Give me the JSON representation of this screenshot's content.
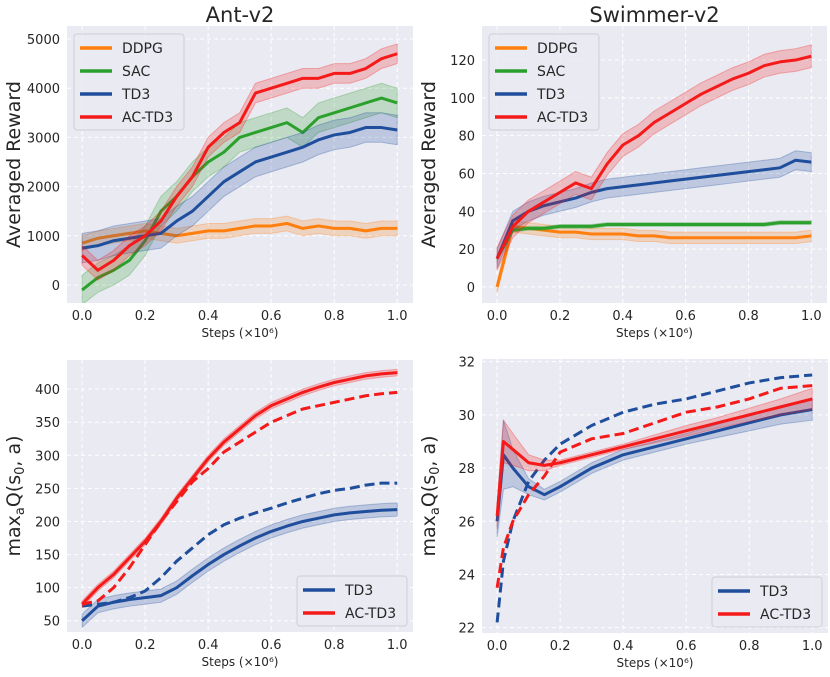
{
  "colors": {
    "DDPG": "#ff7f0e",
    "SAC": "#2ca02c",
    "TD3": "#1f4e9c",
    "AC-TD3": "#f51a1a",
    "background": "#eaeaf2",
    "grid": "#ffffff"
  },
  "chart_data": [
    {
      "type": "line",
      "title": "Ant-v2",
      "xlabel": "Steps (×10⁶)",
      "ylabel": "Averaged Reward",
      "xlim": [
        -0.048,
        1.05
      ],
      "ylim": [
        -366,
        5264
      ],
      "xticks": [
        0.0,
        0.2,
        0.4,
        0.6,
        0.8,
        1.0
      ],
      "xtick_labels": [
        "0.0",
        "0.2",
        "0.4",
        "0.6",
        "0.8",
        "1.0"
      ],
      "yticks": [
        0,
        1000,
        2000,
        3000,
        4000,
        5000
      ],
      "ytick_labels": [
        "0",
        "1000",
        "2000",
        "3000",
        "4000",
        "5000"
      ],
      "grid": true,
      "legend": "top-left",
      "x": [
        0,
        0.05,
        0.1,
        0.15,
        0.2,
        0.25,
        0.3,
        0.35,
        0.4,
        0.45,
        0.5,
        0.55,
        0.6,
        0.65,
        0.7,
        0.75,
        0.8,
        0.85,
        0.9,
        0.95,
        1.0
      ],
      "series": [
        {
          "name": "DDPG",
          "style": "solid",
          "band": 150,
          "values": [
            850,
            950,
            1000,
            1050,
            1100,
            1050,
            1000,
            1050,
            1100,
            1100,
            1150,
            1200,
            1200,
            1250,
            1150,
            1200,
            1150,
            1150,
            1100,
            1150,
            1150
          ]
        },
        {
          "name": "SAC",
          "style": "solid",
          "band": 300,
          "values": [
            -100,
            150,
            300,
            500,
            900,
            1500,
            1800,
            2200,
            2500,
            2700,
            3000,
            3100,
            3200,
            3300,
            3100,
            3400,
            3500,
            3600,
            3700,
            3800,
            3700
          ]
        },
        {
          "name": "TD3",
          "style": "solid",
          "band": 300,
          "values": [
            750,
            800,
            900,
            950,
            1000,
            1050,
            1300,
            1500,
            1800,
            2100,
            2300,
            2500,
            2600,
            2700,
            2800,
            2950,
            3050,
            3100,
            3200,
            3200,
            3150
          ]
        },
        {
          "name": "AC-TD3",
          "style": "solid",
          "band": 200,
          "values": [
            600,
            300,
            500,
            800,
            1000,
            1300,
            1800,
            2200,
            2800,
            3100,
            3300,
            3900,
            4000,
            4100,
            4200,
            4200,
            4300,
            4300,
            4400,
            4600,
            4700
          ]
        }
      ]
    },
    {
      "type": "line",
      "title": "Swimmer-v2",
      "xlabel": "Steps (×10⁶)",
      "ylabel": "Averaged Reward",
      "xlim": [
        -0.048,
        1.05
      ],
      "ylim": [
        -8.5,
        138
      ],
      "xticks": [
        0.0,
        0.2,
        0.4,
        0.6,
        0.8,
        1.0
      ],
      "xtick_labels": [
        "0.0",
        "0.2",
        "0.4",
        "0.6",
        "0.8",
        "1.0"
      ],
      "yticks": [
        0,
        20,
        40,
        60,
        80,
        100,
        120
      ],
      "ytick_labels": [
        "0",
        "20",
        "40",
        "60",
        "80",
        "100",
        "120"
      ],
      "grid": true,
      "legend": "top-left",
      "x": [
        0,
        0.05,
        0.1,
        0.15,
        0.2,
        0.25,
        0.3,
        0.35,
        0.4,
        0.45,
        0.5,
        0.55,
        0.6,
        0.65,
        0.7,
        0.75,
        0.8,
        0.85,
        0.9,
        0.95,
        1.0
      ],
      "series": [
        {
          "name": "DDPG",
          "style": "solid",
          "band": 3,
          "values": [
            0,
            32,
            31,
            30,
            29,
            29,
            28,
            28,
            28,
            27,
            27,
            26,
            26,
            26,
            26,
            26,
            26,
            26,
            26,
            26,
            27
          ]
        },
        {
          "name": "SAC",
          "style": "solid",
          "band": 1,
          "values": [
            15,
            30,
            31,
            31,
            32,
            32,
            32,
            33,
            33,
            33,
            33,
            33,
            33,
            33,
            33,
            33,
            33,
            33,
            34,
            34,
            34
          ]
        },
        {
          "name": "TD3",
          "style": "solid",
          "band": 5,
          "values": [
            15,
            35,
            40,
            43,
            45,
            47,
            50,
            52,
            53,
            54,
            55,
            56,
            57,
            58,
            59,
            60,
            61,
            62,
            63,
            67,
            66
          ]
        },
        {
          "name": "AC-TD3",
          "style": "solid",
          "band": 6,
          "values": [
            15,
            32,
            40,
            45,
            50,
            55,
            52,
            65,
            75,
            80,
            87,
            92,
            97,
            102,
            106,
            110,
            113,
            117,
            119,
            120,
            122
          ]
        }
      ]
    },
    {
      "type": "line",
      "title": "",
      "xlabel": "Steps (×10⁶)",
      "ylabel_parts": {
        "pre": "max",
        "sub1": "a",
        "mid": "Q(s",
        "sub2": "0",
        "post": ", a)"
      },
      "xlim": [
        -0.048,
        1.05
      ],
      "ylim": [
        33,
        444
      ],
      "xticks": [
        0.0,
        0.2,
        0.4,
        0.6,
        0.8,
        1.0
      ],
      "xtick_labels": [
        "0.0",
        "0.2",
        "0.4",
        "0.6",
        "0.8",
        "1.0"
      ],
      "yticks": [
        50,
        100,
        150,
        200,
        250,
        300,
        350,
        400
      ],
      "ytick_labels": [
        "50",
        "100",
        "150",
        "200",
        "250",
        "300",
        "350",
        "400"
      ],
      "grid": true,
      "legend": "bottom-right",
      "x": [
        0,
        0.05,
        0.1,
        0.15,
        0.2,
        0.25,
        0.3,
        0.35,
        0.4,
        0.45,
        0.5,
        0.55,
        0.6,
        0.65,
        0.7,
        0.75,
        0.8,
        0.85,
        0.9,
        0.95,
        1.0
      ],
      "series": [
        {
          "name": "TD3",
          "style": "solid",
          "band": 10,
          "values": [
            50,
            72,
            78,
            82,
            85,
            88,
            100,
            118,
            135,
            150,
            163,
            175,
            185,
            193,
            200,
            205,
            210,
            213,
            215,
            217,
            218
          ]
        },
        {
          "name": "TD3",
          "style": "dashed",
          "band": 0,
          "values": [
            72,
            75,
            78,
            85,
            95,
            115,
            140,
            160,
            180,
            195,
            205,
            213,
            220,
            228,
            235,
            242,
            247,
            250,
            255,
            258,
            258
          ]
        },
        {
          "name": "AC-TD3",
          "style": "solid",
          "band": 5,
          "values": [
            75,
            100,
            120,
            145,
            170,
            200,
            235,
            265,
            295,
            320,
            340,
            360,
            375,
            385,
            395,
            403,
            410,
            415,
            420,
            423,
            425
          ]
        },
        {
          "name": "AC-TD3",
          "style": "dashed",
          "band": 0,
          "values": [
            75,
            80,
            100,
            130,
            165,
            200,
            230,
            260,
            280,
            305,
            320,
            335,
            350,
            360,
            370,
            375,
            380,
            385,
            390,
            393,
            395
          ]
        }
      ]
    },
    {
      "type": "line",
      "title": "",
      "xlabel": "Steps (×10⁶)",
      "ylabel_parts": {
        "pre": "max",
        "sub1": "a",
        "mid": "Q(s",
        "sub2": "0",
        "post": ", a)"
      },
      "xlim": [
        -0.048,
        1.05
      ],
      "ylim": [
        21.8,
        32.1
      ],
      "xticks": [
        0.0,
        0.2,
        0.4,
        0.6,
        0.8,
        1.0
      ],
      "xtick_labels": [
        "0.0",
        "0.2",
        "0.4",
        "0.6",
        "0.8",
        "1.0"
      ],
      "yticks": [
        22,
        24,
        26,
        28,
        30,
        32
      ],
      "ytick_labels": [
        "22",
        "24",
        "26",
        "28",
        "30",
        "32"
      ],
      "grid": true,
      "legend": "bottom-right",
      "x": [
        0,
        0.02,
        0.05,
        0.1,
        0.15,
        0.2,
        0.3,
        0.4,
        0.5,
        0.6,
        0.7,
        0.8,
        0.9,
        1.0
      ],
      "series": [
        {
          "name": "TD3",
          "style": "solid",
          "band": [
            0.6,
            1.3,
            0.7,
            0.3,
            0.2,
            0.2,
            0.2,
            0.2,
            0.2,
            0.2,
            0.25,
            0.3,
            0.35,
            0.4
          ],
          "values": [
            26,
            28.5,
            28,
            27.3,
            27.0,
            27.3,
            28,
            28.5,
            28.8,
            29.1,
            29.4,
            29.7,
            30,
            30.2
          ]
        },
        {
          "name": "TD3",
          "style": "dashed",
          "band": 0,
          "values": [
            22.2,
            24.5,
            26,
            27.5,
            28.3,
            28.9,
            29.6,
            30.1,
            30.4,
            30.6,
            30.9,
            31.2,
            31.4,
            31.5
          ]
        },
        {
          "name": "AC-TD3",
          "style": "solid",
          "band": [
            0.5,
            0.8,
            0.6,
            0.3,
            0.2,
            0.1,
            0.1,
            0.1,
            0.15,
            0.2,
            0.2,
            0.25,
            0.3,
            0.4
          ],
          "values": [
            26.2,
            29,
            28.7,
            28.2,
            28.1,
            28.2,
            28.5,
            28.8,
            29.1,
            29.4,
            29.7,
            30,
            30.3,
            30.6
          ]
        },
        {
          "name": "AC-TD3",
          "style": "dashed",
          "band": 0,
          "values": [
            23.5,
            25,
            26,
            27,
            27.7,
            28.6,
            29.1,
            29.3,
            29.7,
            30.1,
            30.3,
            30.6,
            31.0,
            31.1
          ]
        }
      ]
    }
  ]
}
